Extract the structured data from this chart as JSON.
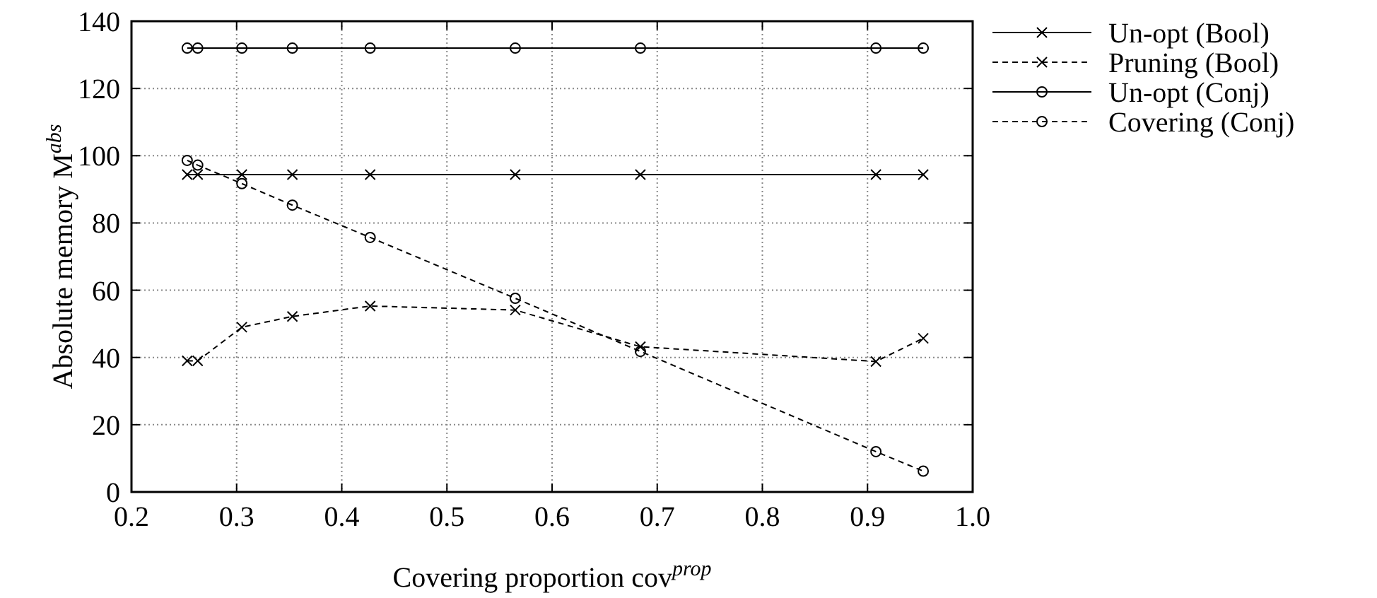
{
  "chart_data": {
    "type": "line",
    "xlabel": "Covering proportion cov$^{prop}$",
    "ylabel": "Absolute memory M$^{abs}$",
    "x": [
      0.253,
      0.263,
      0.305,
      0.353,
      0.427,
      0.565,
      0.684,
      0.908,
      0.953
    ],
    "xlim": [
      0.2,
      1.0
    ],
    "xticks": [
      {
        "value": 0.2,
        "label": "0.2"
      },
      {
        "value": 0.3,
        "label": "0.3"
      },
      {
        "value": 0.4,
        "label": "0.4"
      },
      {
        "value": 0.5,
        "label": "0.5"
      },
      {
        "value": 0.6,
        "label": "0.6"
      },
      {
        "value": 0.7,
        "label": "0.7"
      },
      {
        "value": 0.8,
        "label": "0.8"
      },
      {
        "value": 0.9,
        "label": "0.9"
      },
      {
        "value": 1.0,
        "label": "1.0"
      }
    ],
    "ylim": [
      0,
      140
    ],
    "yticks": [
      0,
      20,
      40,
      60,
      80,
      100,
      120,
      140
    ],
    "grid": true,
    "legend": "right",
    "series": [
      {
        "name": "Un-opt (Bool)",
        "color": "#000000",
        "marker": "cross",
        "line_style": "solid",
        "values": [
          94.4,
          94.4,
          94.4,
          94.4,
          94.4,
          94.4,
          94.4,
          94.4,
          94.4
        ]
      },
      {
        "name": "Pruning (Bool)",
        "color": "#000000",
        "marker": "cross",
        "line_style": "dashed",
        "values": [
          39,
          39,
          49,
          52.2,
          55.3,
          54.1,
          43.2,
          38.8,
          45.7
        ]
      },
      {
        "name": "Un-opt (Conj)",
        "color": "#000000",
        "marker": "circle",
        "line_style": "solid",
        "values": [
          132,
          132,
          132,
          132,
          132,
          132,
          132,
          132,
          132
        ]
      },
      {
        "name": "Covering (Conj)",
        "color": "#000000",
        "marker": "circle",
        "line_style": "dashed",
        "values": [
          98.6,
          97.2,
          91.7,
          85.3,
          75.7,
          57.6,
          41.8,
          12,
          6.2
        ]
      }
    ]
  }
}
